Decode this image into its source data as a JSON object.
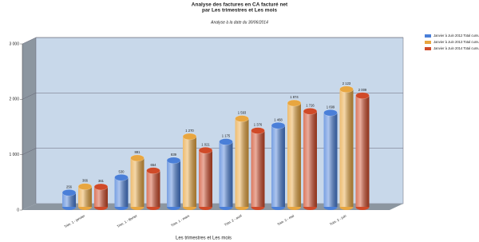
{
  "chart_data": {
    "type": "bar",
    "title": "Analyse des factures en CA facturé net",
    "subtitle": "par Les trimestres et Les mois",
    "note": "Analyse à la date du 30/06/2014",
    "x_label": "Les trimestres et Les mois",
    "categories": [
      "Trim. 1 - janvier",
      "Trim. 1 - février",
      "Trim. 1 - mars",
      "Trim. 2 - avril",
      "Trim. 2 - mai",
      "Trim. 2 - juin"
    ],
    "series": [
      {
        "name": "Janvier à Juin 2012 Total cumulé",
        "color": "#4a7fd8",
        "values": [
          256,
          530,
          839,
          1175,
          1468,
          1699
        ],
        "value_labels": [
          "256",
          "530",
          "839",
          "1 175",
          "1 468",
          "1 699"
        ]
      },
      {
        "name": "Janvier à Juin 2013 Total cumulé",
        "color": "#e8a640",
        "values": [
          366,
          881,
          1270,
          1593,
          1874,
          2123
        ],
        "value_labels": [
          "366",
          "881",
          "1 270",
          "1 593",
          "1 874",
          "2 123"
        ]
      },
      {
        "name": "Janvier à Juin 2014 Total cumulé",
        "color": "#d04a28",
        "values": [
          361,
          654,
          1021,
          1376,
          1726,
          2009
        ],
        "value_labels": [
          "361",
          "654",
          "1 021",
          "1 376",
          "1 726",
          "2 009"
        ]
      }
    ],
    "ylim": [
      0,
      3000
    ],
    "yticks": [
      0,
      {
        "value": 1000,
        "label": "1 000"
      },
      {
        "value": 2000,
        "label": "2 000"
      },
      {
        "value": 3000,
        "label": "3 000"
      }
    ],
    "grid": true,
    "legend": "top-right"
  }
}
